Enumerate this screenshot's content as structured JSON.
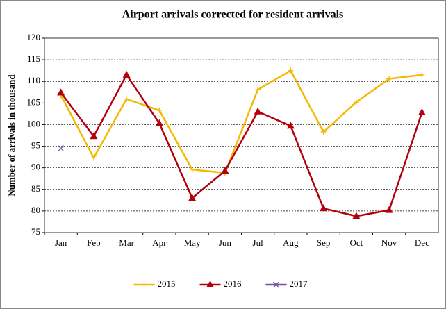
{
  "chart_data": {
    "type": "line",
    "title": "Airport arrivals corrected for resident arrivals",
    "y_label": "Number of arrivals in thousand",
    "categories": [
      "Jan",
      "Feb",
      "Mar",
      "Apr",
      "May",
      "Jun",
      "Jul",
      "Aug",
      "Sep",
      "Oct",
      "Nov",
      "Dec"
    ],
    "series": [
      {
        "name": "2015",
        "color": "#f5b800",
        "marker": "plus",
        "values": [
          106.8,
          92.3,
          105.9,
          103.3,
          89.6,
          88.8,
          108.1,
          112.5,
          98.3,
          105.2,
          110.6,
          111.5
        ]
      },
      {
        "name": "2016",
        "color": "#b3000c",
        "marker": "triangle",
        "values": [
          107.4,
          97.3,
          111.5,
          100.3,
          83.0,
          89.3,
          103.0,
          99.7,
          80.6,
          78.8,
          80.2,
          102.8
        ]
      },
      {
        "name": "2017",
        "color": "#7a4fa0",
        "marker": "x",
        "values": [
          94.5,
          null,
          null,
          null,
          null,
          null,
          null,
          null,
          null,
          null,
          null,
          null
        ]
      }
    ],
    "ylim": [
      75,
      120
    ],
    "yticks": [
      75,
      80,
      85,
      90,
      95,
      100,
      105,
      110,
      115,
      120
    ],
    "grid": true,
    "legend": "bottom"
  }
}
